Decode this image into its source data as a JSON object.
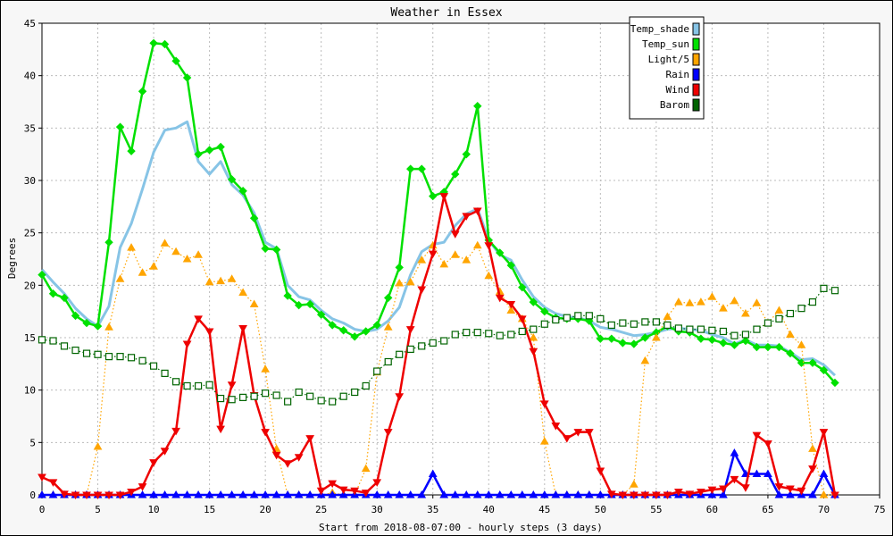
{
  "chart_data": {
    "type": "line",
    "title": "Weather in Essex",
    "xlabel": "Start from 2018-08-07:00 - hourly steps (3 days)",
    "ylabel": "Degrees",
    "xlim": [
      0,
      75
    ],
    "ylim": [
      0,
      45
    ],
    "xticks": [
      0,
      5,
      10,
      15,
      20,
      25,
      30,
      35,
      40,
      45,
      50,
      55,
      60,
      65,
      70,
      75
    ],
    "yticks": [
      0,
      5,
      10,
      15,
      20,
      25,
      30,
      35,
      40,
      45
    ],
    "grid": true,
    "legend_position": "top-right",
    "series": [
      {
        "name": "Temp_shade",
        "color": "#87c4e6",
        "marker": "none",
        "style": "solid",
        "values": [
          21.5,
          20.3,
          19.2,
          17.8,
          16.8,
          16.1,
          18.0,
          23.6,
          25.9,
          29.2,
          32.7,
          34.8,
          35.0,
          35.6,
          31.8,
          30.6,
          31.8,
          29.6,
          28.6,
          26.9,
          24.1,
          23.5,
          20.0,
          18.9,
          18.6,
          17.6,
          16.8,
          16.4,
          15.8,
          15.6,
          15.8,
          16.6,
          17.9,
          21.0,
          23.2,
          23.9,
          24.1,
          25.7,
          26.8,
          27.3,
          24.3,
          22.9,
          22.4,
          20.5,
          18.9,
          17.9,
          17.3,
          17.0,
          16.9,
          16.6,
          16.0,
          15.8,
          15.5,
          15.2,
          15.3,
          15.5,
          15.8,
          15.9,
          15.8,
          15.7,
          15.3,
          15.0,
          14.4,
          14.8,
          14.3,
          14.3,
          14.2,
          13.6,
          12.9,
          13.0,
          12.4,
          11.4
        ]
      },
      {
        "name": "Temp_sun",
        "color": "#00e000",
        "marker": "diamond",
        "style": "solid",
        "values": [
          21.0,
          19.2,
          18.8,
          17.1,
          16.4,
          16.1,
          24.1,
          35.1,
          32.8,
          38.5,
          43.1,
          43.0,
          41.4,
          39.8,
          32.5,
          32.9,
          33.2,
          30.1,
          29.0,
          26.4,
          23.5,
          23.4,
          19.0,
          18.1,
          18.2,
          17.2,
          16.2,
          15.7,
          15.1,
          15.6,
          16.2,
          18.8,
          21.7,
          31.1,
          31.1,
          28.5,
          28.9,
          30.6,
          32.5,
          37.1,
          24.3,
          23.1,
          21.9,
          19.8,
          18.4,
          17.5,
          16.9,
          16.8,
          16.8,
          16.6,
          14.9,
          14.9,
          14.5,
          14.4,
          15.0,
          15.5,
          16.1,
          15.6,
          15.5,
          14.9,
          14.8,
          14.5,
          14.3,
          14.7,
          14.1,
          14.1,
          14.1,
          13.5,
          12.6,
          12.6,
          11.9,
          10.7
        ]
      },
      {
        "name": "Light/5",
        "color": "#ffa500",
        "marker": "triangle-up",
        "style": "dotted",
        "values": [
          0,
          0,
          0,
          0,
          0,
          4.6,
          16.0,
          20.6,
          23.6,
          21.2,
          21.8,
          24.0,
          23.2,
          22.5,
          22.9,
          20.3,
          20.4,
          20.6,
          19.3,
          18.2,
          12.0,
          4.4,
          0,
          0,
          0,
          0,
          0.2,
          0,
          0,
          2.5,
          11.7,
          16.0,
          20.2,
          20.3,
          22.4,
          23.8,
          22.0,
          22.9,
          22.4,
          23.8,
          20.9,
          19.4,
          17.6,
          16.8,
          15.0,
          5.1,
          0,
          0,
          0,
          0,
          0,
          0,
          0,
          1.0,
          12.8,
          15.0,
          17.0,
          18.4,
          18.3,
          18.4,
          18.9,
          17.8,
          18.5,
          17.3,
          18.3,
          16.4,
          17.6,
          15.3,
          14.3,
          4.4,
          0,
          0
        ]
      },
      {
        "name": "Rain",
        "color": "#0000ff",
        "marker": "triangle-up",
        "style": "solid",
        "values": [
          0,
          0,
          0,
          0,
          0,
          0,
          0,
          0,
          0,
          0,
          0,
          0,
          0,
          0,
          0,
          0,
          0,
          0,
          0,
          0,
          0,
          0,
          0,
          0,
          0,
          0,
          0,
          0,
          0,
          0,
          0,
          0,
          0,
          0,
          0,
          2.0,
          0,
          0,
          0,
          0,
          0,
          0,
          0,
          0,
          0,
          0,
          0,
          0,
          0,
          0,
          0,
          0,
          0,
          0,
          0,
          0,
          0,
          0,
          0,
          0,
          0,
          0,
          4.0,
          2.0,
          2.0,
          2.0,
          0,
          0,
          0,
          0,
          2.0,
          0
        ]
      },
      {
        "name": "Wind",
        "color": "#ee0000",
        "marker": "triangle-down",
        "style": "solid",
        "values": [
          1.7,
          1.2,
          0.1,
          0,
          0,
          0,
          0,
          0,
          0.3,
          0.8,
          3.1,
          4.2,
          6.1,
          14.4,
          16.8,
          15.6,
          6.3,
          10.5,
          15.9,
          9.5,
          6.0,
          3.8,
          3.0,
          3.6,
          5.4,
          0.4,
          1.1,
          0.5,
          0.4,
          0.2,
          1.2,
          6.0,
          9.4,
          15.8,
          19.6,
          23.0,
          28.5,
          24.9,
          26.6,
          27.1,
          23.8,
          18.8,
          18.2,
          16.8,
          13.7,
          8.7,
          6.6,
          5.4,
          6.0,
          6.0,
          2.3,
          0.1,
          0,
          0,
          0,
          0,
          0,
          0.3,
          0.1,
          0.3,
          0.5,
          0.6,
          1.5,
          0.7,
          5.7,
          4.9,
          0.8,
          0.6,
          0.4,
          2.5,
          6.0,
          0
        ]
      },
      {
        "name": "Barom",
        "color": "#006400",
        "marker": "square",
        "style": "dotted",
        "values": [
          14.8,
          14.7,
          14.2,
          13.8,
          13.5,
          13.4,
          13.2,
          13.2,
          13.1,
          12.8,
          12.3,
          11.6,
          10.8,
          10.4,
          10.4,
          10.5,
          9.2,
          9.1,
          9.3,
          9.4,
          9.7,
          9.5,
          8.9,
          9.8,
          9.4,
          9.0,
          8.9,
          9.4,
          9.8,
          10.4,
          11.8,
          12.7,
          13.4,
          13.9,
          14.2,
          14.5,
          14.7,
          15.3,
          15.5,
          15.5,
          15.4,
          15.2,
          15.3,
          15.6,
          15.8,
          16.3,
          16.7,
          16.9,
          17.1,
          17.1,
          16.8,
          16.2,
          16.4,
          16.3,
          16.5,
          16.5,
          16.2,
          15.9,
          15.8,
          15.8,
          15.7,
          15.6,
          15.2,
          15.3,
          15.8,
          16.4,
          16.8,
          17.3,
          17.8,
          18.4,
          19.7,
          19.5
        ]
      }
    ]
  }
}
